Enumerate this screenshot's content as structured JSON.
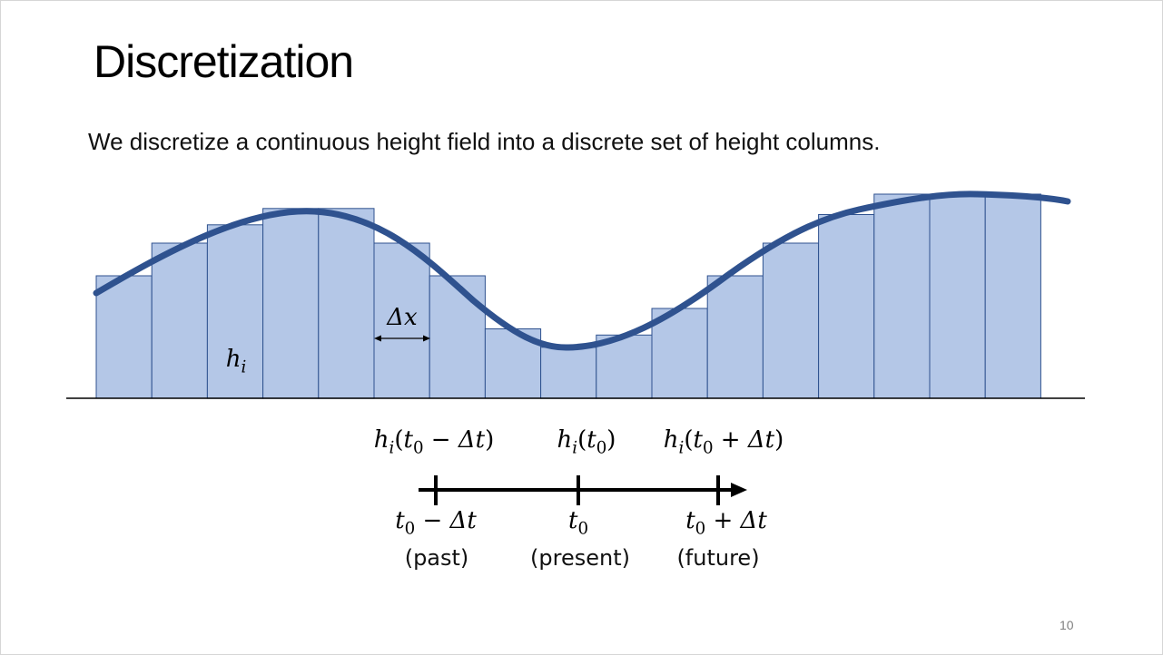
{
  "slide": {
    "title": "Discretization",
    "subtitle": "We discretize a continuous height field into a discrete set of height columns.",
    "page_number": "10"
  },
  "diagram": {
    "column_heights": [
      0.6,
      0.76,
      0.85,
      0.93,
      0.93,
      0.76,
      0.6,
      0.34,
      0.25,
      0.31,
      0.44,
      0.6,
      0.76,
      0.9,
      1.0,
      1.0,
      1.0
    ],
    "colors": {
      "column_fill": "#b4c7e7",
      "column_stroke": "#2f528f",
      "curve": "#2f528f",
      "axis": "#000000"
    },
    "column_label": {
      "base": "h",
      "sub": "i"
    },
    "width_label": "Δx"
  },
  "timeline": {
    "terms": [
      {
        "base": "h",
        "sub": "i",
        "open": "(",
        "t": "t",
        "tsub": "0",
        "op": " − Δt",
        "close": ")"
      },
      {
        "base": "h",
        "sub": "i",
        "open": "(",
        "t": "t",
        "tsub": "0",
        "op": "",
        "close": ")"
      },
      {
        "base": "h",
        "sub": "i",
        "open": "(",
        "t": "t",
        "tsub": "0",
        "op": " + Δt",
        "close": ")"
      }
    ],
    "ticks": [
      {
        "t": "t",
        "tsub": "0",
        "op": " − Δt",
        "caption": "(past)"
      },
      {
        "t": "t",
        "tsub": "0",
        "op": "",
        "caption": "(present)"
      },
      {
        "t": "t",
        "tsub": "0",
        "op": " + Δt",
        "caption": "(future)"
      }
    ]
  }
}
